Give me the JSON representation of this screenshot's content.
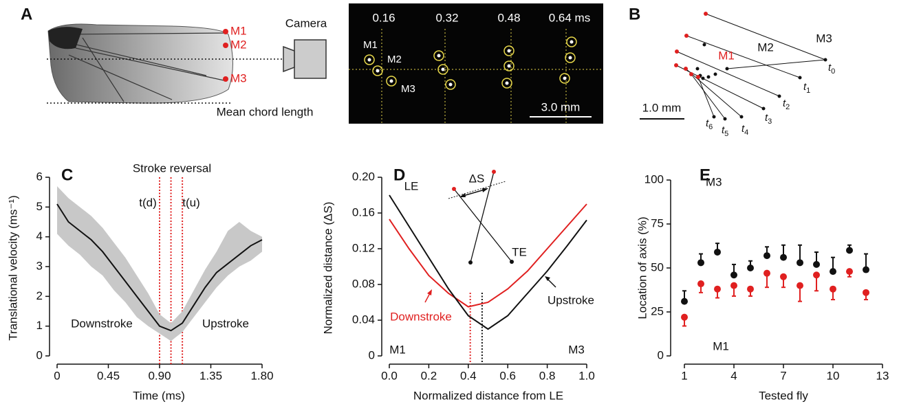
{
  "panel_a": {
    "label": "A",
    "markers": [
      "M1",
      "M2",
      "M3"
    ],
    "camera": "Camera",
    "chord": "Mean chord length",
    "times": [
      "0.16",
      "0.32",
      "0.48",
      "0.64 ms"
    ],
    "photo_markers": [
      "M1",
      "M2",
      "M3"
    ],
    "scale": "3.0 mm"
  },
  "panel_b": {
    "label": "B",
    "markers": [
      "M1",
      "M2",
      "M3"
    ],
    "scale": "1.0 mm",
    "times": [
      {
        "base": "t",
        "sub": "0"
      },
      {
        "base": "t",
        "sub": "1"
      },
      {
        "base": "t",
        "sub": "2"
      },
      {
        "base": "t",
        "sub": "3"
      },
      {
        "base": "t",
        "sub": "4"
      },
      {
        "base": "t",
        "sub": "5"
      },
      {
        "base": "t",
        "sub": "6"
      }
    ]
  },
  "chart_data": [
    {
      "type": "line",
      "label": "C",
      "xlabel": "Time (ms)",
      "ylabel": "Translational velocity (ms⁻¹)",
      "annotations": [
        "Stroke reversal",
        "t(d)",
        "t(u)",
        "Downstroke",
        "Upstroke"
      ],
      "x": [
        0,
        0.1,
        0.2,
        0.3,
        0.4,
        0.5,
        0.6,
        0.7,
        0.8,
        0.9,
        1.0,
        1.1,
        1.2,
        1.3,
        1.4,
        1.5,
        1.6,
        1.7,
        1.8
      ],
      "series": [
        {
          "color": "#111111",
          "band_color": "#c8c8c8",
          "values": [
            5.1,
            4.5,
            4.2,
            3.9,
            3.5,
            3.0,
            2.5,
            2.0,
            1.5,
            1.0,
            0.85,
            1.1,
            1.7,
            2.3,
            2.8,
            3.1,
            3.4,
            3.7,
            3.9
          ],
          "lower": [
            4.1,
            3.7,
            3.4,
            3.0,
            2.7,
            2.2,
            1.8,
            1.3,
            1.0,
            0.75,
            0.5,
            0.8,
            1.3,
            1.8,
            2.3,
            2.7,
            3.0,
            3.2,
            3.5
          ],
          "upper": [
            5.7,
            5.3,
            5.0,
            4.7,
            4.3,
            3.8,
            3.3,
            2.7,
            2.1,
            1.4,
            1.1,
            1.5,
            2.2,
            2.9,
            3.5,
            4.2,
            4.5,
            4.2,
            4.0
          ]
        }
      ],
      "vlines": [
        {
          "value": 0.9,
          "color": "#e02020"
        },
        {
          "value": 1.0,
          "color": "#e02020"
        },
        {
          "value": 1.1,
          "color": "#e02020"
        }
      ],
      "xlim": [
        0,
        1.8
      ],
      "xticks": [
        0,
        0.45,
        {
          "value": 0.9,
          "label": "0.90"
        },
        1.35,
        {
          "value": 1.8,
          "label": "1.80"
        }
      ],
      "ylim": [
        0,
        6
      ],
      "yticks": [
        0,
        1,
        2,
        3,
        4,
        5,
        6
      ]
    },
    {
      "type": "line",
      "label": "D",
      "xlabel": "Normalized distance from LE",
      "ylabel": "Normalized distance (ΔS)",
      "annotations": [
        "LE",
        "ΔS",
        "TE",
        "M1",
        "M3",
        "Downstroke",
        "Upstroke"
      ],
      "x": [
        0,
        0.1,
        0.2,
        0.3,
        0.4,
        0.5,
        0.6,
        0.7,
        0.8,
        0.9,
        1.0
      ],
      "series": [
        {
          "color": "#e02020",
          "values": [
            0.153,
            0.12,
            0.09,
            0.07,
            0.055,
            0.06,
            0.075,
            0.095,
            0.12,
            0.145,
            0.17
          ]
        },
        {
          "color": "#111111",
          "values": [
            0.18,
            0.145,
            0.11,
            0.075,
            0.045,
            0.03,
            0.045,
            0.07,
            0.095,
            0.123,
            0.152
          ]
        }
      ],
      "vlines": [
        {
          "value": 0.41,
          "color": "#e02020"
        },
        {
          "value": 0.47,
          "color": "#111111"
        }
      ],
      "xlim": [
        0,
        1
      ],
      "xticks": [
        {
          "value": 0,
          "label": "0.0"
        },
        0.2,
        0.4,
        0.6,
        0.8,
        {
          "value": 1,
          "label": "1.0"
        }
      ],
      "ylim": [
        0,
        0.2
      ],
      "yticks": [
        0,
        0.04,
        0.08,
        0.12,
        0.16,
        {
          "value": 0.2,
          "label": "0.20"
        }
      ]
    },
    {
      "type": "scatter",
      "label": "E",
      "xlabel": "Tested fly",
      "ylabel": "Location of axis (%)",
      "annotations": [
        "M3",
        "M1"
      ],
      "x": [
        1,
        2,
        3,
        4,
        5,
        6,
        7,
        8,
        9,
        10,
        11,
        12
      ],
      "series": [
        {
          "color": "#111111",
          "error_direction": "up",
          "values": [
            31,
            53,
            59,
            46,
            50,
            57,
            56,
            53,
            52,
            48,
            60,
            49
          ],
          "errors": [
            6,
            5,
            5,
            6,
            4,
            5,
            7,
            10,
            7,
            8,
            3,
            9
          ]
        },
        {
          "color": "#e02020",
          "error_direction": "down",
          "values": [
            22,
            41,
            38,
            40,
            38,
            47,
            45,
            40,
            46,
            38,
            48,
            36
          ],
          "errors": [
            5,
            5,
            5,
            6,
            4,
            8,
            6,
            9,
            9,
            6,
            3,
            4
          ]
        }
      ],
      "xlim": [
        1,
        13
      ],
      "xticks": [
        1,
        4,
        7,
        10,
        13
      ],
      "ylim": [
        0,
        100
      ],
      "yticks": [
        0,
        25,
        50,
        75,
        100
      ]
    }
  ]
}
